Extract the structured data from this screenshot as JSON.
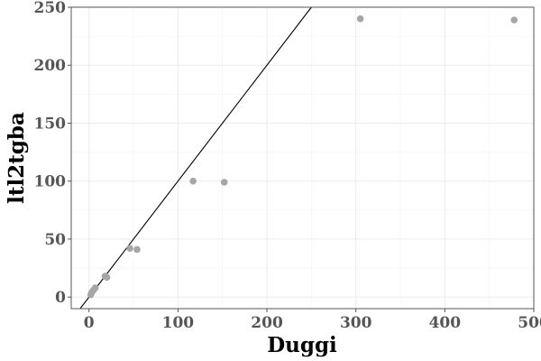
{
  "chart_data": {
    "type": "scatter",
    "title": "",
    "xlabel": "Duggi",
    "ylabel": "ltl2tgba",
    "xlim": [
      -20,
      500
    ],
    "ylim": [
      -10,
      250
    ],
    "x_ticks": [
      0,
      100,
      200,
      300,
      400,
      500
    ],
    "y_ticks": [
      0,
      50,
      100,
      150,
      200,
      250
    ],
    "x_tick_labels": [
      "0",
      "100",
      "200",
      "300",
      "400",
      "500"
    ],
    "y_tick_labels": [
      "0",
      "50",
      "100",
      "150",
      "200",
      "250"
    ],
    "grid": true,
    "legend": "none",
    "point_color": "#a6a6a6",
    "reference_line": "y = x",
    "series": [
      {
        "points": [
          {
            "x": 2,
            "y": 2
          },
          {
            "x": 3,
            "y": 4
          },
          {
            "x": 5,
            "y": 6
          },
          {
            "x": 7,
            "y": 8
          },
          {
            "x": 18,
            "y": 18
          },
          {
            "x": 20,
            "y": 17
          },
          {
            "x": 46,
            "y": 42
          },
          {
            "x": 54,
            "y": 41
          },
          {
            "x": 117,
            "y": 100
          },
          {
            "x": 152,
            "y": 99
          },
          {
            "x": 305,
            "y": 240
          },
          {
            "x": 478,
            "y": 239
          }
        ]
      }
    ]
  }
}
